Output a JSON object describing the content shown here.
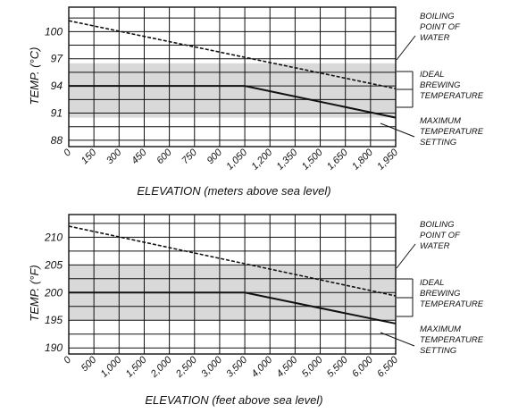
{
  "chart_data": [
    {
      "type": "line",
      "ylabel": "TEMP. (°C)",
      "xlabel": "ELEVATION (meters above sea level)",
      "x_ticks": [
        "0",
        "150",
        "300",
        "450",
        "600",
        "750",
        "900",
        "1,050",
        "1,200",
        "1,350",
        "1,500",
        "1,650",
        "1,800",
        "1,950"
      ],
      "y_ticks": [
        "88",
        "91",
        "94",
        "97",
        "100"
      ],
      "xlim": [
        0,
        1950
      ],
      "ylim": [
        87.3,
        102.7
      ],
      "band": {
        "name": "IDEAL BREWING TEMPERATURE",
        "y_range": [
          90.5,
          96.5
        ]
      },
      "series": [
        {
          "name": "BOILING POINT OF WATER",
          "style": "dashed",
          "x": [
            0,
            1950
          ],
          "y": [
            101.2,
            93.7
          ]
        },
        {
          "name": "MAXIMUM TEMPERATURE SETTING",
          "style": "solid",
          "x": [
            0,
            1050,
            1950
          ],
          "y": [
            94,
            94,
            90.5
          ]
        }
      ],
      "annotations": [
        {
          "lines": [
            "BOILING",
            "POINT OF",
            "WATER"
          ]
        },
        {
          "lines": [
            "IDEAL",
            "BREWING",
            "TEMPERATURE"
          ]
        },
        {
          "lines": [
            "MAXIMUM",
            "TEMPERATURE",
            "SETTING"
          ]
        }
      ]
    },
    {
      "type": "line",
      "ylabel": "TEMP. (°F)",
      "xlabel": "ELEVATION (feet above sea level)",
      "x_ticks": [
        "0",
        "500",
        "1,000",
        "1,500",
        "2,000",
        "2,500",
        "3,000",
        "3,500",
        "4,000",
        "4,500",
        "5,000",
        "5,500",
        "6,000",
        "6,500"
      ],
      "y_ticks": [
        "190",
        "195",
        "200",
        "205",
        "210"
      ],
      "xlim": [
        0,
        6500
      ],
      "ylim": [
        188.9,
        214.1
      ],
      "band": {
        "name": "IDEAL BREWING TEMPERATURE",
        "y_range": [
          195,
          205
        ]
      },
      "series": [
        {
          "name": "BOILING POINT OF WATER",
          "style": "dashed",
          "x": [
            0,
            6500
          ],
          "y": [
            212,
            199.4
          ]
        },
        {
          "name": "MAXIMUM TEMPERATURE SETTING",
          "style": "solid",
          "x": [
            0,
            3500,
            6500
          ],
          "y": [
            200,
            200,
            194.4
          ]
        }
      ],
      "annotations": [
        {
          "lines": [
            "BOILING",
            "POINT OF",
            "WATER"
          ]
        },
        {
          "lines": [
            "IDEAL",
            "BREWING",
            "TEMPERATURE"
          ]
        },
        {
          "lines": [
            "MAXIMUM",
            "TEMPERATURE",
            "SETTING"
          ]
        }
      ]
    }
  ]
}
